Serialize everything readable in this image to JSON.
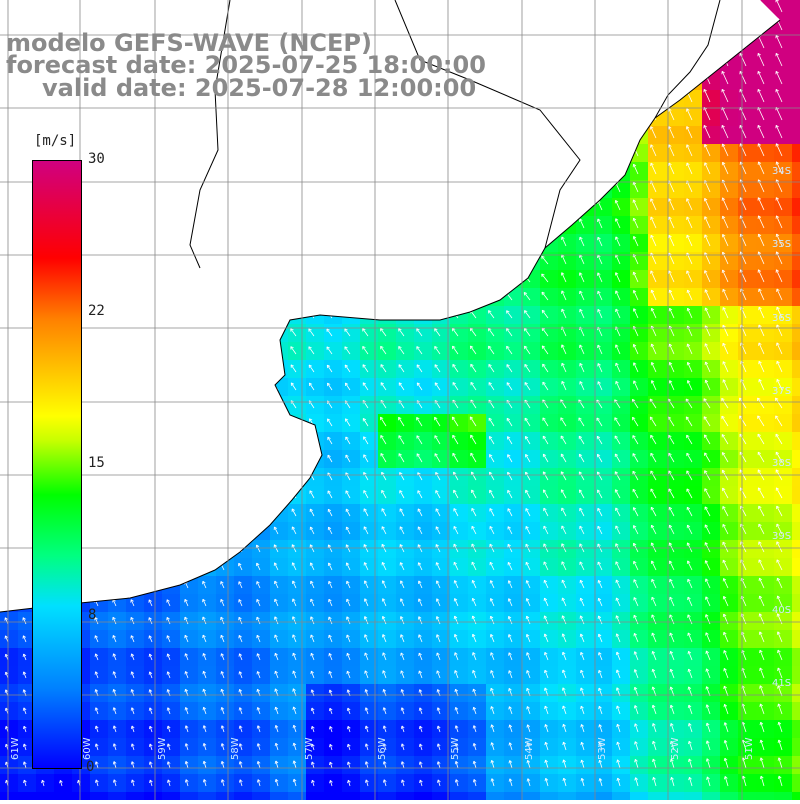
{
  "header": {
    "line1": "modelo GEFS-WAVE (NCEP)",
    "line2": "forecast date: 2025-07-25 18:00:00",
    "line3": "valid date: 2025-07-28 12:00:00"
  },
  "colorbar": {
    "unit": "[m/s]",
    "ticks": [
      "30",
      "22",
      "15",
      "8",
      "0"
    ],
    "range_min": 0,
    "range_max": 30
  },
  "map": {
    "lat_labels": [
      "34S",
      "35S",
      "36S",
      "37S",
      "38S",
      "39S",
      "40S",
      "41S"
    ],
    "lon_labels": [
      "61W",
      "60W",
      "59W",
      "58W",
      "57W",
      "56W",
      "55W",
      "54W",
      "53W",
      "52W",
      "51W"
    ],
    "land_color": "#ffffff",
    "grid_color": "#888888",
    "coast_color": "#000000",
    "arrow_color": "#ffffff"
  }
}
